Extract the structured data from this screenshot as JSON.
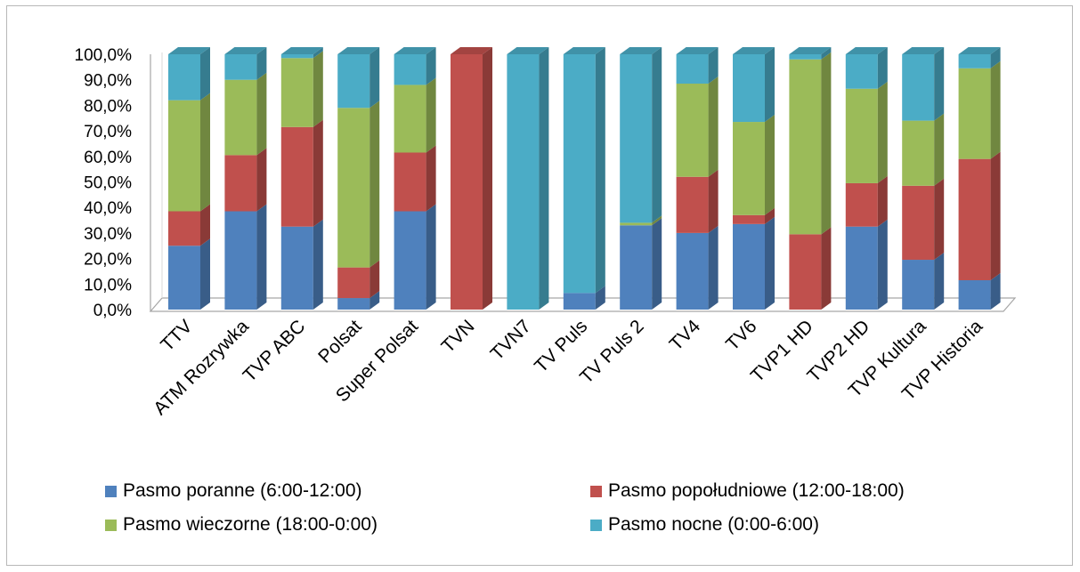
{
  "chart_data": {
    "type": "bar",
    "stacked": "percent",
    "title": "",
    "xlabel": "",
    "ylabel": "",
    "ylim": [
      0,
      100
    ],
    "y_ticks": [
      "0,0%",
      "10,0%",
      "20,0%",
      "30,0%",
      "40,0%",
      "50,0%",
      "60,0%",
      "70,0%",
      "80,0%",
      "90,0%",
      "100,0%"
    ],
    "grid": false,
    "legend_position": "bottom",
    "categories": [
      "TTV",
      "ATM Rozrywka",
      "TVP ABC",
      "Polsat",
      "Super Polsat",
      "TVN",
      "TVN7",
      "TV Puls",
      "TV Puls 2",
      "TV4",
      "TV6",
      "TVP1 HD",
      "TVP2 HD",
      "TVP Kultura",
      "TVP Historia"
    ],
    "series": [
      {
        "name": "Pasmo poranne (6:00-12:00)",
        "color": "#4F81BD",
        "values": [
          25,
          38.5,
          32.5,
          4.5,
          38.5,
          0,
          0,
          6.5,
          33,
          30,
          33.5,
          0,
          32.5,
          19.5,
          11.5
        ]
      },
      {
        "name": "Pasmo popołudniowe (12:00-18:00)",
        "color": "#C0504D",
        "values": [
          13.5,
          22,
          39,
          12,
          23,
          100,
          0,
          0,
          0,
          22,
          3.5,
          29.5,
          17,
          29,
          47.5
        ]
      },
      {
        "name": "Pasmo wieczorne (18:00-0:00)",
        "color": "#9BBB59",
        "values": [
          43.5,
          29.5,
          27,
          62.5,
          26.5,
          0,
          0,
          0,
          1,
          36.5,
          36.5,
          68.5,
          37,
          25.5,
          35.5
        ]
      },
      {
        "name": "Pasmo nocne (0:00-6:00)",
        "color": "#4BACC6",
        "values": [
          18,
          10,
          1.5,
          21,
          12,
          0,
          100,
          93.5,
          66,
          11.5,
          26.5,
          2,
          13.5,
          26,
          5.5
        ]
      }
    ]
  }
}
